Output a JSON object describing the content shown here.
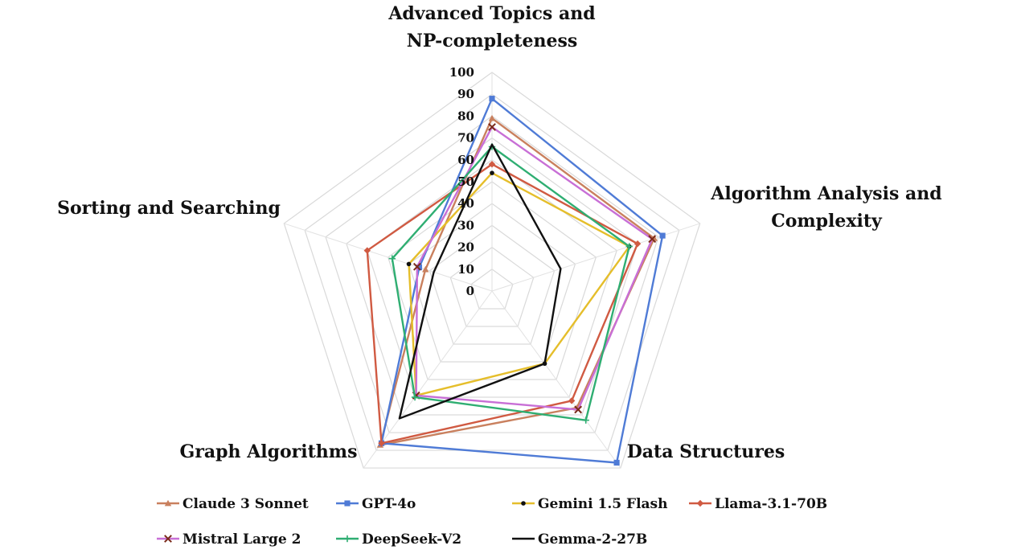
{
  "chart_data": {
    "type": "radar",
    "axes": [
      {
        "lines": [
          "Advanced Topics and",
          "NP-completeness"
        ]
      },
      {
        "lines": [
          "Algorithm Analysis and",
          "Complexity"
        ]
      },
      {
        "lines": [
          "Data Structures"
        ]
      },
      {
        "lines": [
          "Graph Algorithms"
        ]
      },
      {
        "lines": [
          "Sorting and Searching"
        ]
      }
    ],
    "range": [
      0,
      100
    ],
    "ticks": [
      "0",
      "10",
      "20",
      "30",
      "40",
      "50",
      "60",
      "70",
      "80",
      "90",
      "100"
    ],
    "grid": true,
    "legend_position": "bottom",
    "series": [
      {
        "name": "Claude 3 Sonnet",
        "color": "#c9805e",
        "marker": "triangle",
        "values": [
          79,
          78,
          66,
          87,
          32
        ]
      },
      {
        "name": "GPT-4o",
        "color": "#4f7bd6",
        "marker": "square",
        "values": [
          88,
          82,
          97,
          86,
          35
        ]
      },
      {
        "name": "Gemini 1.5 Flash",
        "color": "#e5be2b",
        "marker": "dot",
        "values": [
          54,
          66,
          41,
          59,
          40
        ]
      },
      {
        "name": "Llama-3.1-70B",
        "color": "#d05a42",
        "marker": "diamond",
        "values": [
          58,
          70,
          62,
          86,
          60
        ]
      },
      {
        "name": "Mistral  Large 2",
        "color": "#c86fd6",
        "marker": "star",
        "values": [
          75,
          77,
          67,
          59,
          36
        ]
      },
      {
        "name": "DeepSeek-V2",
        "color": "#2fae72",
        "marker": "plus",
        "values": [
          66,
          66,
          73,
          60,
          48
        ]
      },
      {
        "name": "Gemma-2-27B",
        "color": "#111111",
        "marker": "none",
        "values": [
          67,
          33,
          41,
          72,
          28
        ]
      }
    ]
  }
}
